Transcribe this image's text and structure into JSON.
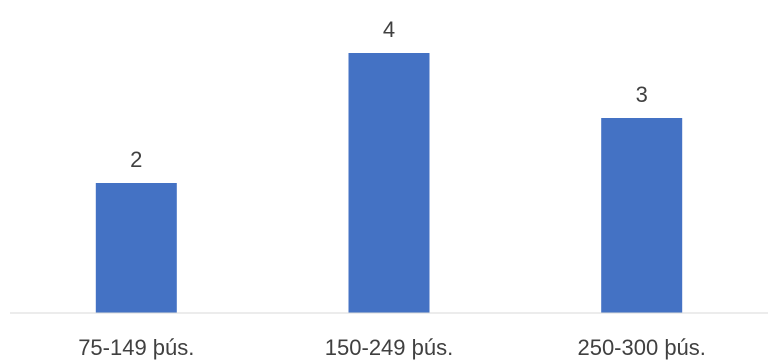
{
  "chart_data": {
    "type": "bar",
    "title": "",
    "xlabel": "",
    "ylabel": "",
    "categories": [
      "75-149 þús.",
      "150-249 þús.",
      "250-300 þús."
    ],
    "values": [
      2,
      4,
      3
    ],
    "data_labels": [
      "2",
      "4",
      "3"
    ],
    "ylim": [
      0,
      4.4
    ],
    "grid": false,
    "legend": "none",
    "colors": {
      "bar": "#4472C4",
      "axis": "#D9D9D9",
      "text": "#404040"
    }
  }
}
